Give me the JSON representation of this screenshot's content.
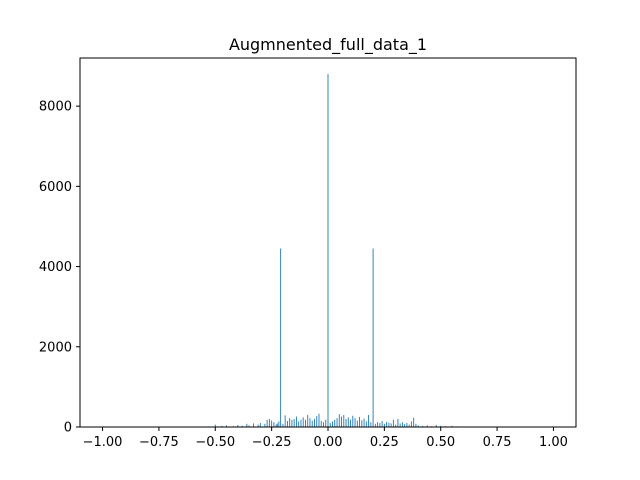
{
  "chart_data": {
    "type": "bar",
    "title": "Augmnented_full_data_1",
    "xlabel": "",
    "ylabel": "",
    "xlim": [
      -1.1,
      1.1
    ],
    "ylim": [
      0,
      9200
    ],
    "grid": false,
    "color": "#1f77b4",
    "bin_width": 0.004,
    "x_ticks": [
      {
        "value": -1.0,
        "label": "−1.00"
      },
      {
        "value": -0.75,
        "label": "−0.75"
      },
      {
        "value": -0.5,
        "label": "−0.50"
      },
      {
        "value": -0.25,
        "label": "−0.25"
      },
      {
        "value": 0.0,
        "label": "0.00"
      },
      {
        "value": 0.25,
        "label": "0.25"
      },
      {
        "value": 0.5,
        "label": "0.50"
      },
      {
        "value": 0.75,
        "label": "0.75"
      },
      {
        "value": 1.0,
        "label": "1.00"
      }
    ],
    "y_ticks": [
      {
        "value": 0,
        "label": "0"
      },
      {
        "value": 2000,
        "label": "2000"
      },
      {
        "value": 4000,
        "label": "4000"
      },
      {
        "value": 6000,
        "label": "6000"
      },
      {
        "value": 8000,
        "label": "8000"
      }
    ],
    "bins": [
      {
        "x": -0.5,
        "y": 60
      },
      {
        "x": -0.47,
        "y": 30
      },
      {
        "x": -0.45,
        "y": 40
      },
      {
        "x": -0.42,
        "y": 20
      },
      {
        "x": -0.4,
        "y": 50
      },
      {
        "x": -0.38,
        "y": 30
      },
      {
        "x": -0.36,
        "y": 80
      },
      {
        "x": -0.35,
        "y": 40
      },
      {
        "x": -0.33,
        "y": 90
      },
      {
        "x": -0.31,
        "y": 60
      },
      {
        "x": -0.3,
        "y": 100
      },
      {
        "x": -0.28,
        "y": 80
      },
      {
        "x": -0.27,
        "y": 180
      },
      {
        "x": -0.26,
        "y": 200
      },
      {
        "x": -0.25,
        "y": 160
      },
      {
        "x": -0.24,
        "y": 120
      },
      {
        "x": -0.23,
        "y": 60
      },
      {
        "x": -0.225,
        "y": 90
      },
      {
        "x": -0.218,
        "y": 140
      },
      {
        "x": -0.21,
        "y": 4450
      },
      {
        "x": -0.2,
        "y": 80
      },
      {
        "x": -0.19,
        "y": 290
      },
      {
        "x": -0.18,
        "y": 150
      },
      {
        "x": -0.17,
        "y": 220
      },
      {
        "x": -0.16,
        "y": 180
      },
      {
        "x": -0.15,
        "y": 200
      },
      {
        "x": -0.14,
        "y": 260
      },
      {
        "x": -0.13,
        "y": 140
      },
      {
        "x": -0.12,
        "y": 180
      },
      {
        "x": -0.11,
        "y": 240
      },
      {
        "x": -0.1,
        "y": 180
      },
      {
        "x": -0.09,
        "y": 300
      },
      {
        "x": -0.08,
        "y": 220
      },
      {
        "x": -0.07,
        "y": 160
      },
      {
        "x": -0.06,
        "y": 200
      },
      {
        "x": -0.05,
        "y": 270
      },
      {
        "x": -0.04,
        "y": 330
      },
      {
        "x": -0.03,
        "y": 150
      },
      {
        "x": -0.02,
        "y": 120
      },
      {
        "x": -0.01,
        "y": 180
      },
      {
        "x": 0.0,
        "y": 8800
      },
      {
        "x": 0.01,
        "y": 100
      },
      {
        "x": 0.02,
        "y": 140
      },
      {
        "x": 0.03,
        "y": 180
      },
      {
        "x": 0.04,
        "y": 220
      },
      {
        "x": 0.05,
        "y": 320
      },
      {
        "x": 0.06,
        "y": 260
      },
      {
        "x": 0.07,
        "y": 300
      },
      {
        "x": 0.08,
        "y": 200
      },
      {
        "x": 0.09,
        "y": 240
      },
      {
        "x": 0.1,
        "y": 180
      },
      {
        "x": 0.11,
        "y": 280
      },
      {
        "x": 0.12,
        "y": 220
      },
      {
        "x": 0.13,
        "y": 160
      },
      {
        "x": 0.14,
        "y": 250
      },
      {
        "x": 0.15,
        "y": 170
      },
      {
        "x": 0.16,
        "y": 210
      },
      {
        "x": 0.17,
        "y": 140
      },
      {
        "x": 0.18,
        "y": 300
      },
      {
        "x": 0.19,
        "y": 120
      },
      {
        "x": 0.2,
        "y": 4450
      },
      {
        "x": 0.21,
        "y": 80
      },
      {
        "x": 0.22,
        "y": 120
      },
      {
        "x": 0.23,
        "y": 100
      },
      {
        "x": 0.24,
        "y": 150
      },
      {
        "x": 0.25,
        "y": 80
      },
      {
        "x": 0.26,
        "y": 130
      },
      {
        "x": 0.27,
        "y": 110
      },
      {
        "x": 0.28,
        "y": 90
      },
      {
        "x": 0.29,
        "y": 180
      },
      {
        "x": 0.3,
        "y": 60
      },
      {
        "x": 0.31,
        "y": 200
      },
      {
        "x": 0.32,
        "y": 90
      },
      {
        "x": 0.33,
        "y": 120
      },
      {
        "x": 0.34,
        "y": 70
      },
      {
        "x": 0.35,
        "y": 100
      },
      {
        "x": 0.36,
        "y": 60
      },
      {
        "x": 0.37,
        "y": 140
      },
      {
        "x": 0.38,
        "y": 230
      },
      {
        "x": 0.39,
        "y": 80
      },
      {
        "x": 0.4,
        "y": 40
      },
      {
        "x": 0.42,
        "y": 30
      },
      {
        "x": 0.44,
        "y": 40
      },
      {
        "x": 0.46,
        "y": 20
      },
      {
        "x": 0.48,
        "y": 50
      },
      {
        "x": 0.5,
        "y": 30
      },
      {
        "x": 0.52,
        "y": 20
      },
      {
        "x": 0.55,
        "y": 30
      },
      {
        "x": 0.57,
        "y": 15
      }
    ]
  }
}
